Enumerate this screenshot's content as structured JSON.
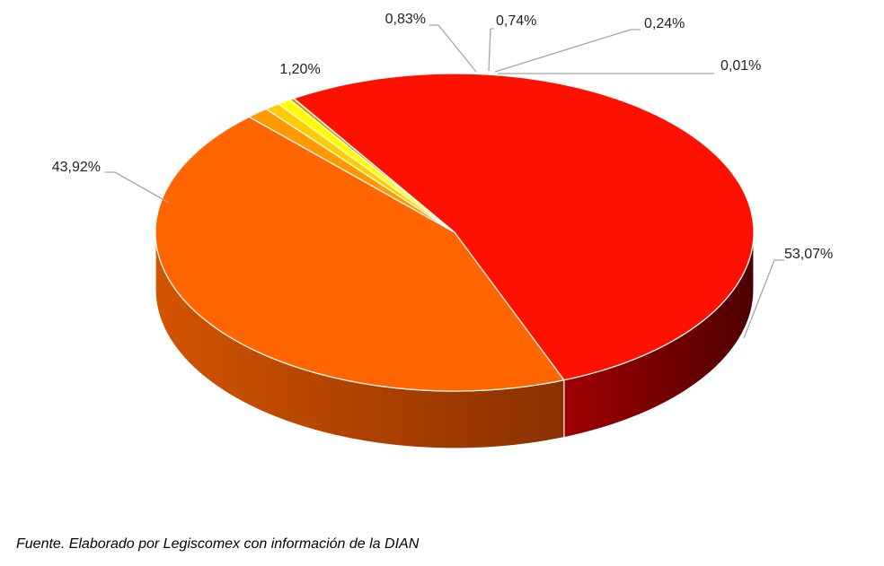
{
  "chart_data": {
    "type": "pie",
    "style": "3d",
    "slices": [
      {
        "label": "53,07%",
        "value": 53.07,
        "color": "#ff1100",
        "side_color": "#8a0000"
      },
      {
        "label": "43,92%",
        "value": 43.92,
        "color": "#ff6600",
        "side_color": "#b84000"
      },
      {
        "label": "1,20%",
        "value": 1.2,
        "color": "#ff9900",
        "side_color": "#b86a00"
      },
      {
        "label": "0,83%",
        "value": 0.83,
        "color": "#ffcc00",
        "side_color": "#b89300"
      },
      {
        "label": "0,74%",
        "value": 0.74,
        "color": "#ffff00",
        "side_color": "#b8b800"
      },
      {
        "label": "0,24%",
        "value": 0.24,
        "color": "#c8a000",
        "side_color": "#8a6e00"
      },
      {
        "label": "0,01%",
        "value": 0.01,
        "color": "#996633",
        "side_color": "#664422"
      }
    ]
  },
  "source_note": "Fuente. Elaborado por Legiscomex con información de la DIAN"
}
